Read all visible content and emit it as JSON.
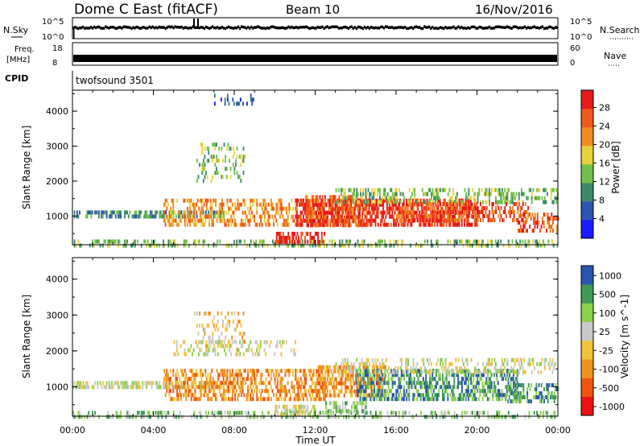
{
  "header": {
    "station": "Dome C East (fitACF)",
    "beam": "Beam 10",
    "date": "16/Nov/2016"
  },
  "aux_panels": {
    "nsky_label": "N.Sky",
    "nsearch_label": "N.Search",
    "nsky_ticks": [
      "10^5",
      "10^0"
    ],
    "nsearch_ticks": [
      "10^5",
      "10^0"
    ],
    "freq_label": "Freq.",
    "freq_unit": "[MHz]",
    "freq_ticks": [
      "18",
      "8"
    ],
    "nave_label": "Nave",
    "nave_ticks": [
      "60",
      "0"
    ],
    "cpid_label": "CPID",
    "cpid_value": "twofsound 3501"
  },
  "colors": {
    "power_scale": [
      "#1a1aff",
      "#2a55b0",
      "#3d8a6a",
      "#72c04a",
      "#e6d23a",
      "#f28c1e",
      "#ef5a1a",
      "#e61a1a"
    ],
    "velocity_scale": [
      "#ee1111",
      "#ee5511",
      "#f0921e",
      "#f2c23a",
      "#c8c8c8",
      "#8ad24a",
      "#3f9a55",
      "#2a55b0"
    ]
  },
  "chart_data": [
    {
      "type": "heatmap",
      "name": "Power",
      "ylabel": "Slant Range [km]",
      "xlabel": "",
      "colorbar_label": "Power [dB]",
      "colorbar_ticks": [
        "28",
        "24",
        "20",
        "16",
        "12",
        "8",
        "4"
      ],
      "colorbar_range": [
        0,
        32
      ],
      "y_ticks": [
        "4000",
        "3000",
        "2000",
        "1000"
      ],
      "ylim": [
        180,
        4600
      ],
      "xlim_hours": [
        0,
        24
      ],
      "echo_regions": [
        {
          "t0": 0.0,
          "t1": 7.5,
          "r0": 1040,
          "r1": 1160,
          "level": 2,
          "density": 0.55
        },
        {
          "t0": 0.0,
          "t1": 24.0,
          "r0": 200,
          "r1": 330,
          "level": 3,
          "density": 0.35
        },
        {
          "t0": 4.5,
          "t1": 12.5,
          "r0": 700,
          "r1": 1500,
          "level": 5,
          "density": 0.45
        },
        {
          "t0": 6.0,
          "t1": 8.5,
          "r0": 2000,
          "r1": 3100,
          "level": 3,
          "density": 0.2
        },
        {
          "t0": 11.0,
          "t1": 20.0,
          "r0": 800,
          "r1": 1500,
          "level": 7,
          "density": 0.6
        },
        {
          "t0": 11.5,
          "t1": 14.5,
          "r0": 700,
          "r1": 1600,
          "level": 6,
          "density": 0.55
        },
        {
          "t0": 10.0,
          "t1": 12.5,
          "r0": 250,
          "r1": 550,
          "level": 7,
          "density": 0.6
        },
        {
          "t0": 13.0,
          "t1": 24.0,
          "r0": 1450,
          "r1": 1800,
          "level": 3,
          "density": 0.35
        },
        {
          "t0": 16.0,
          "t1": 22.5,
          "r0": 900,
          "r1": 1400,
          "level": 6,
          "density": 0.5
        },
        {
          "t0": 22.0,
          "t1": 24.0,
          "r0": 600,
          "r1": 1100,
          "level": 6,
          "density": 0.45
        },
        {
          "t0": 7.0,
          "t1": 9.0,
          "r0": 4200,
          "r1": 4500,
          "level": 1,
          "density": 0.15
        }
      ]
    },
    {
      "type": "heatmap",
      "name": "Velocity",
      "ylabel": "Slant Range [km]",
      "xlabel": "Time UT",
      "colorbar_label": "Velocity [m s^-1]",
      "colorbar_ticks": [
        "1000",
        "500",
        "100",
        "25",
        "-25",
        "-100",
        "-500",
        "-1000"
      ],
      "y_ticks": [
        "4000",
        "3000",
        "2000",
        "1000"
      ],
      "ylim": [
        180,
        4600
      ],
      "x_ticks": [
        "00:00",
        "04:00",
        "08:00",
        "12:00",
        "16:00",
        "20:00",
        "00:00"
      ],
      "xlim_hours": [
        0,
        24
      ],
      "echo_regions": [
        {
          "t0": 0.0,
          "t1": 7.5,
          "r0": 1040,
          "r1": 1160,
          "level": 4,
          "density": 0.6
        },
        {
          "t0": 0.0,
          "t1": 24.0,
          "r0": 200,
          "r1": 330,
          "level": 5,
          "density": 0.35
        },
        {
          "t0": 4.5,
          "t1": 12.5,
          "r0": 700,
          "r1": 1500,
          "level": 2,
          "density": 0.5
        },
        {
          "t0": 6.0,
          "t1": 8.5,
          "r0": 2000,
          "r1": 3100,
          "level": 3,
          "density": 0.2
        },
        {
          "t0": 5.0,
          "t1": 11.0,
          "r0": 1900,
          "r1": 2300,
          "level": 4,
          "density": 0.3
        },
        {
          "t0": 12.0,
          "t1": 15.5,
          "r0": 800,
          "r1": 1600,
          "level": 2,
          "density": 0.55
        },
        {
          "t0": 14.0,
          "t1": 22.0,
          "r0": 700,
          "r1": 1500,
          "level": 6,
          "density": 0.55
        },
        {
          "t0": 12.5,
          "t1": 14.5,
          "r0": 300,
          "r1": 600,
          "level": 5,
          "density": 0.5
        },
        {
          "t0": 10.0,
          "t1": 12.0,
          "r0": 250,
          "r1": 500,
          "level": 4,
          "density": 0.5
        },
        {
          "t0": 13.0,
          "t1": 24.0,
          "r0": 1450,
          "r1": 1800,
          "level": 4,
          "density": 0.35
        },
        {
          "t0": 21.5,
          "t1": 24.0,
          "r0": 600,
          "r1": 1100,
          "level": 6,
          "density": 0.45
        }
      ]
    }
  ]
}
